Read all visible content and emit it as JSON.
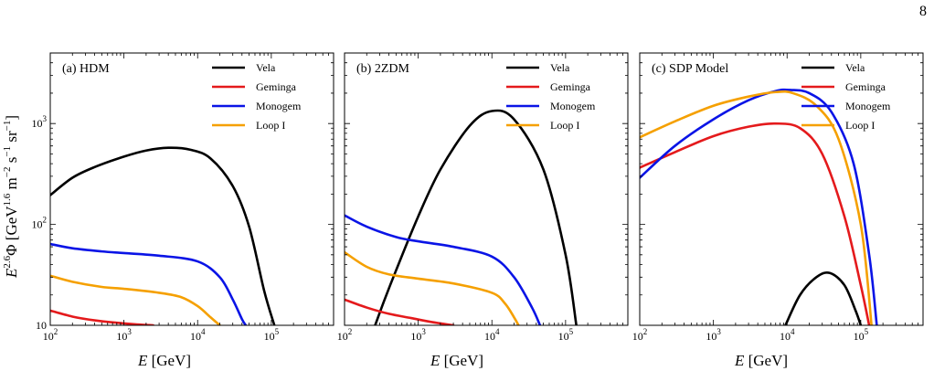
{
  "page": {
    "number": "8"
  },
  "figure": {
    "ylabel": "E^{2.6}Φ [GeV^{1.6} m^{-2} s^{-1} sr^{-1}]",
    "ylabel_parts": {
      "e": "E",
      "e_exp": "2.6",
      "phi": "Φ [GeV",
      "gev_exp": "1.6",
      "m": " m",
      "m_exp": "−2",
      "s": " s",
      "s_exp": "−1",
      "sr": " sr",
      "sr_exp": "−1",
      "close": "]"
    },
    "xlabel": "E [GeV]",
    "xlabel_parts": {
      "e": "E",
      "unit": " [GeV]"
    }
  },
  "colors": {
    "Vela": "#000000",
    "Geminga": "#e41a1c",
    "Monogem": "#0a14e6",
    "Loop I": "#f5a000"
  },
  "chart_data": [
    {
      "type": "line",
      "title": "(a) HDM",
      "xscale": "log",
      "yscale": "log",
      "xlim": [
        100,
        700000
      ],
      "ylim": [
        10,
        5000
      ],
      "x_ticks": [
        "10^2",
        "10^3",
        "10^4",
        "10^5"
      ],
      "y_ticks": [
        "10",
        "10^2",
        "10^3"
      ],
      "legend": [
        "Vela",
        "Geminga",
        "Monogem",
        "Loop I"
      ],
      "legend_position": "top-right",
      "series": [
        {
          "name": "Vela",
          "x": [
            100,
            200,
            400,
            1000,
            2000,
            4000,
            8000,
            15000,
            30000,
            50000,
            80000,
            110000
          ],
          "y": [
            195,
            290,
            370,
            470,
            540,
            575,
            550,
            450,
            240,
            95,
            22,
            10
          ]
        },
        {
          "name": "Geminga",
          "x": [
            100,
            200,
            400,
            800,
            1500,
            2500
          ],
          "y": [
            14,
            12.2,
            11.2,
            10.6,
            10.2,
            10
          ]
        },
        {
          "name": "Monogem",
          "x": [
            100,
            200,
            500,
            1000,
            3000,
            10000,
            20000,
            30000,
            40000,
            45000
          ],
          "y": [
            64,
            58,
            54,
            52,
            49,
            43,
            30,
            18,
            11.5,
            10
          ]
        },
        {
          "name": "Loop I",
          "x": [
            100,
            200,
            500,
            1000,
            3000,
            6000,
            10000,
            15000,
            20000
          ],
          "y": [
            31,
            27,
            24,
            23,
            21,
            19,
            15.5,
            12,
            10
          ]
        }
      ]
    },
    {
      "type": "line",
      "title": "(b) 2ZDM",
      "xscale": "log",
      "yscale": "log",
      "xlim": [
        100,
        700000
      ],
      "ylim": [
        10,
        5000
      ],
      "x_ticks": [
        "10^2",
        "10^3",
        "10^4",
        "10^5"
      ],
      "y_ticks": [
        "10",
        "10^2",
        "10^3"
      ],
      "legend": [
        "Vela",
        "Geminga",
        "Monogem",
        "Loop I"
      ],
      "legend_position": "top-right",
      "series": [
        {
          "name": "Vela",
          "x": [
            260,
            350,
            500,
            1000,
            2000,
            5000,
            10000,
            20000,
            50000,
            100000,
            140000
          ],
          "y": [
            10,
            18,
            35,
            120,
            350,
            950,
            1330,
            1100,
            350,
            50,
            10
          ]
        },
        {
          "name": "Geminga",
          "x": [
            100,
            200,
            400,
            800,
            1500,
            3000
          ],
          "y": [
            18,
            15,
            13,
            11.8,
            10.8,
            10
          ]
        },
        {
          "name": "Monogem",
          "x": [
            100,
            200,
            500,
            1000,
            3000,
            10000,
            20000,
            35000,
            45000
          ],
          "y": [
            123,
            95,
            75,
            68,
            60,
            48,
            30,
            15,
            10
          ]
        },
        {
          "name": "Loop I",
          "x": [
            100,
            200,
            400,
            1000,
            3000,
            10000,
            15000,
            20000,
            23000
          ],
          "y": [
            53,
            38,
            32,
            29,
            26,
            21,
            16.5,
            12,
            10
          ]
        }
      ]
    },
    {
      "type": "line",
      "title": "(c) SDP Model",
      "xscale": "log",
      "yscale": "log",
      "xlim": [
        100,
        700000
      ],
      "ylim": [
        10,
        5000
      ],
      "x_ticks": [
        "10^2",
        "10^3",
        "10^4",
        "10^5"
      ],
      "y_ticks": [
        "10",
        "10^2",
        "10^3"
      ],
      "legend": [
        "Vela",
        "Geminga",
        "Monogem",
        "Loop I"
      ],
      "legend_position": "top-right",
      "series": [
        {
          "name": "Vela",
          "x": [
            9500,
            15000,
            25000,
            38000,
            60000,
            85000,
            100000
          ],
          "y": [
            10,
            20,
            30,
            33,
            25,
            14,
            10
          ]
        },
        {
          "name": "Geminga",
          "x": [
            100,
            300,
            1000,
            3000,
            7000,
            15000,
            30000,
            60000,
            100000,
            130000
          ],
          "y": [
            365,
            520,
            750,
            930,
            1000,
            900,
            500,
            120,
            25,
            10
          ]
        },
        {
          "name": "Monogem",
          "x": [
            100,
            300,
            1000,
            3000,
            7000,
            11000,
            20000,
            40000,
            80000,
            130000,
            165000
          ],
          "y": [
            290,
            600,
            1100,
            1700,
            2100,
            2150,
            2000,
            1300,
            400,
            50,
            10
          ]
        },
        {
          "name": "Loop I",
          "x": [
            100,
            300,
            1000,
            3000,
            7000,
            12000,
            25000,
            50000,
            100000,
            140000
          ],
          "y": [
            730,
            1050,
            1500,
            1850,
            2050,
            2000,
            1500,
            700,
            100,
            10
          ]
        }
      ]
    }
  ]
}
